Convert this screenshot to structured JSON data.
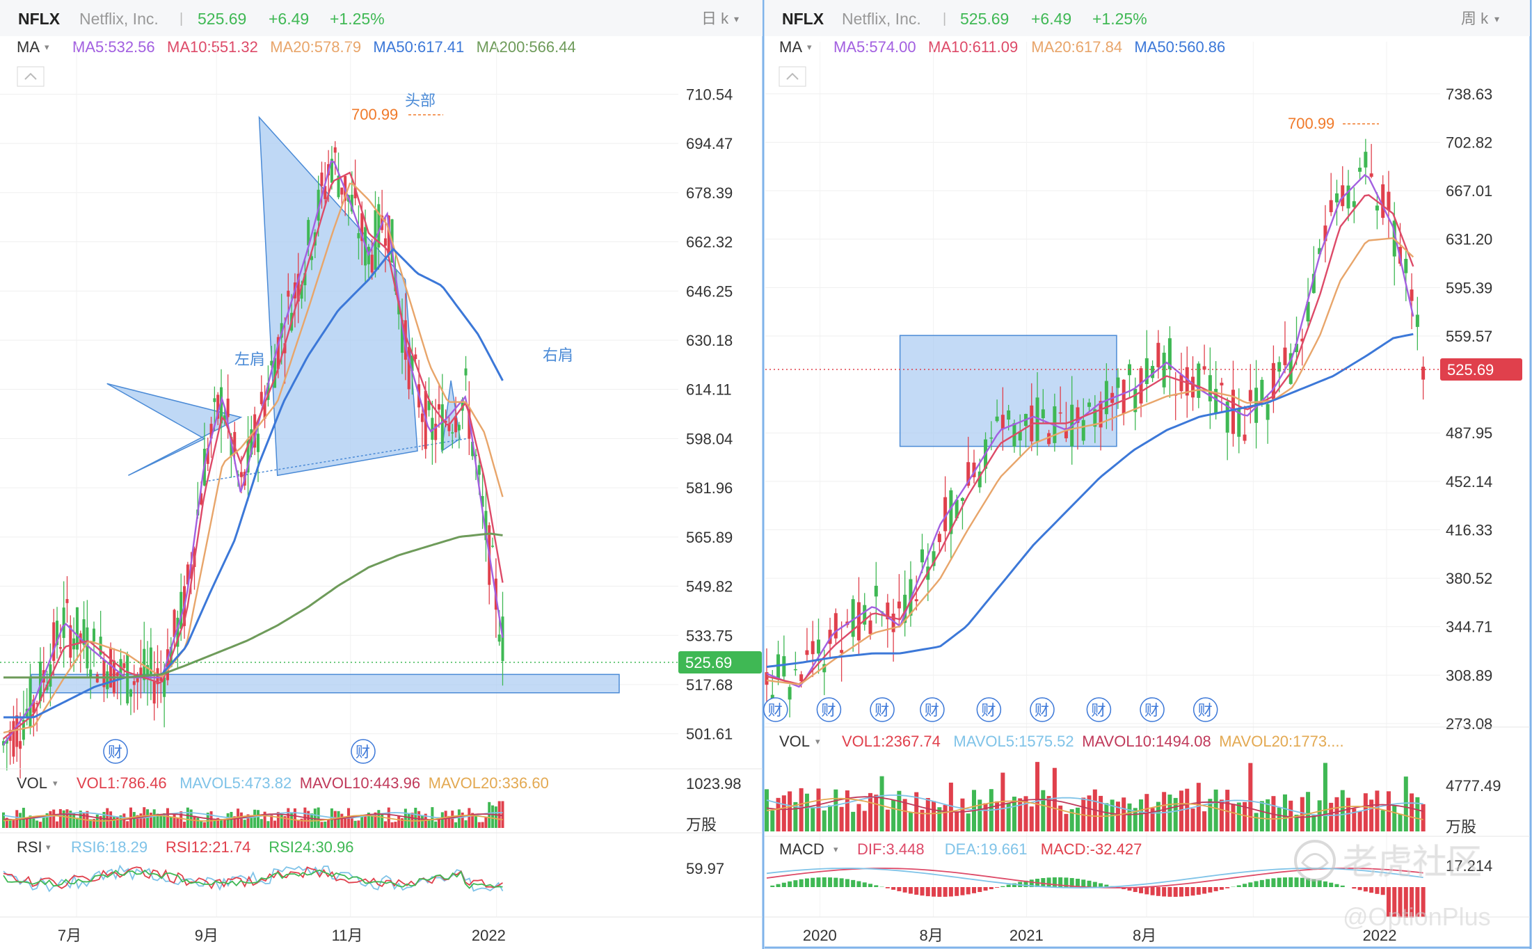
{
  "colors": {
    "up": "#3fb854",
    "down": "#e0404c",
    "ma5": "#a25fe0",
    "ma10": "#dd4a68",
    "ma20": "#e8a56a",
    "ma50": "#3c78d8",
    "ma200": "#6e9b5a",
    "accent": "#f07a2a",
    "blue_fill": "#a9cbf2",
    "text": "#333333",
    "muted": "#999999",
    "price_box": "#3fb854",
    "price_box_right": "#e0404c",
    "vol_ma5": "#7fc3e8",
    "vol_ma10": "#c0395a",
    "vol_ma20": "#e3a952",
    "rsi6": "#7fc3e8",
    "rsi12": "#e0404c",
    "rsi24": "#3fb854"
  },
  "left_panel": {
    "header": {
      "symbol": "NFLX",
      "company": "Netflix, Inc.",
      "separator": "|",
      "price": "525.69",
      "change": "+6.49",
      "change_pct": "+1.25%",
      "period": "日 k",
      "period_arrow": "▾"
    },
    "ma_row": {
      "label": "MA",
      "arrow": "▾",
      "collapse_icon": "chevron-up-icon",
      "items": [
        {
          "text": "MA5:532.56",
          "color": "#a25fe0"
        },
        {
          "text": "MA10:551.32",
          "color": "#dd4a68"
        },
        {
          "text": "MA20:578.79",
          "color": "#e8a56a"
        },
        {
          "text": "MA50:617.41",
          "color": "#3c78d8"
        },
        {
          "text": "MA200:566.44",
          "color": "#6e9b5a"
        }
      ]
    },
    "y_ticks": [
      "710.54",
      "694.47",
      "678.39",
      "662.32",
      "646.25",
      "630.18",
      "614.11",
      "598.04",
      "581.96",
      "565.89",
      "549.82",
      "533.75",
      "517.68",
      "501.61"
    ],
    "current_price_label": "525.69",
    "annotations": {
      "head": "头部",
      "left_shoulder": "左肩",
      "right_shoulder": "右肩",
      "high": "700.99"
    },
    "earnings_label": "财",
    "vol_row": {
      "label": "VOL",
      "arrow": "▾",
      "items": [
        {
          "text": "VOL1:786.46",
          "color": "#e0404c"
        },
        {
          "text": "MAVOL5:473.82",
          "color": "#7fc3e8"
        },
        {
          "text": "MAVOL10:443.96",
          "color": "#c0395a"
        },
        {
          "text": "MAVOL20:336.60",
          "color": "#e3a952"
        }
      ],
      "axis_top": "1023.98",
      "unit": "万股"
    },
    "rsi_row": {
      "label": "RSI",
      "arrow": "▾",
      "items": [
        {
          "text": "RSI6:18.29",
          "color": "#7fc3e8"
        },
        {
          "text": "RSI12:21.74",
          "color": "#e0404c"
        },
        {
          "text": "RSI24:30.96",
          "color": "#3fb854"
        }
      ],
      "axis_top": "59.97"
    },
    "x_ticks": [
      "7月",
      "9月",
      "11月",
      "2022"
    ]
  },
  "right_panel": {
    "header": {
      "symbol": "NFLX",
      "company": "Netflix, Inc.",
      "separator": "|",
      "price": "525.69",
      "change": "+6.49",
      "change_pct": "+1.25%",
      "period": "周 k",
      "period_arrow": "▾"
    },
    "ma_row": {
      "label": "MA",
      "arrow": "▾",
      "collapse_icon": "chevron-up-icon",
      "items": [
        {
          "text": "MA5:574.00",
          "color": "#a25fe0"
        },
        {
          "text": "MA10:611.09",
          "color": "#dd4a68"
        },
        {
          "text": "MA20:617.84",
          "color": "#e8a56a"
        },
        {
          "text": "MA50:560.86",
          "color": "#3c78d8"
        }
      ]
    },
    "y_ticks": [
      "738.63",
      "702.82",
      "667.01",
      "631.20",
      "595.39",
      "559.57",
      "487.95",
      "452.14",
      "416.33",
      "380.52",
      "344.71",
      "308.89",
      "273.08"
    ],
    "current_price_label": "525.69",
    "annotations": {
      "high": "700.99"
    },
    "earnings_label": "财",
    "vol_row": {
      "label": "VOL",
      "arrow": "▾",
      "items": [
        {
          "text": "VOL1:2367.74",
          "color": "#e0404c"
        },
        {
          "text": "MAVOL5:1575.52",
          "color": "#7fc3e8"
        },
        {
          "text": "MAVOL10:1494.08",
          "color": "#c0395a"
        },
        {
          "text": "MAVOL20:1773....",
          "color": "#e3a952"
        }
      ],
      "axis_top": "4777.49",
      "unit": "万股"
    },
    "macd_row": {
      "label": "MACD",
      "arrow": "▾",
      "items": [
        {
          "text": "DIF:3.448",
          "color": "#dd4a68"
        },
        {
          "text": "DEA:19.661",
          "color": "#7fc3e8"
        },
        {
          "text": "MACD:-32.427",
          "color": "#e0404c"
        }
      ],
      "axis_top": "17.214"
    },
    "x_ticks": [
      "2020",
      "8月",
      "2021",
      "8月",
      "2022"
    ]
  },
  "watermark": {
    "brand": "老虎社区",
    "handle": "@OptionPlus",
    "icon": "tiger-logo-icon"
  },
  "chart_data": [
    {
      "type": "candlestick",
      "title": "",
      "period": "daily",
      "ylim": [
        493.58,
        718.58
      ],
      "y_ticks": [
        710.54,
        694.47,
        678.39,
        662.32,
        646.25,
        630.18,
        614.11,
        598.04,
        581.96,
        565.89,
        549.82,
        533.75,
        517.68,
        501.61
      ],
      "x_ticks": [
        "7月",
        "9月",
        "11月",
        "2022"
      ],
      "last_close": 525.69,
      "high_marker": 700.99,
      "pattern": "head-and-shoulders",
      "pattern_labels": {
        "left_shoulder": "左肩",
        "head": "头部",
        "right_shoulder": "右肩"
      },
      "pattern_points": [
        {
          "label": "左肩",
          "x": 0.17,
          "price": 616
        },
        {
          "label": "",
          "x": 0.205,
          "price": 586
        },
        {
          "label": "头部",
          "x": 0.42,
          "price": 703
        },
        {
          "label": "",
          "x": 0.37,
          "price": 584
        },
        {
          "label": "右肩",
          "x": 0.735,
          "price": 617
        }
      ],
      "support_zone": [
        515,
        521
      ],
      "moving_averages": {
        "MA5": [
          [
            0,
            498
          ],
          [
            0.05,
            512
          ],
          [
            0.1,
            538
          ],
          [
            0.14,
            530
          ],
          [
            0.2,
            520
          ],
          [
            0.26,
            520
          ],
          [
            0.3,
            545
          ],
          [
            0.33,
            590
          ],
          [
            0.36,
            612
          ],
          [
            0.39,
            580
          ],
          [
            0.45,
            628
          ],
          [
            0.5,
            660
          ],
          [
            0.54,
            690
          ],
          [
            0.57,
            675
          ],
          [
            0.6,
            658
          ],
          [
            0.63,
            672
          ],
          [
            0.66,
            628
          ],
          [
            0.7,
            600
          ],
          [
            0.73,
            605
          ],
          [
            0.76,
            612
          ],
          [
            0.79,
            570
          ],
          [
            0.82,
            533
          ]
        ],
        "MA10": [
          [
            0,
            500
          ],
          [
            0.05,
            508
          ],
          [
            0.1,
            530
          ],
          [
            0.14,
            532
          ],
          [
            0.2,
            522
          ],
          [
            0.26,
            518
          ],
          [
            0.3,
            540
          ],
          [
            0.33,
            580
          ],
          [
            0.36,
            606
          ],
          [
            0.39,
            590
          ],
          [
            0.45,
            620
          ],
          [
            0.5,
            655
          ],
          [
            0.54,
            682
          ],
          [
            0.57,
            685
          ],
          [
            0.6,
            665
          ],
          [
            0.63,
            660
          ],
          [
            0.66,
            632
          ],
          [
            0.7,
            610
          ],
          [
            0.73,
            602
          ],
          [
            0.76,
            610
          ],
          [
            0.79,
            585
          ],
          [
            0.82,
            551
          ]
        ],
        "MA20": [
          [
            0,
            502
          ],
          [
            0.05,
            504
          ],
          [
            0.1,
            520
          ],
          [
            0.14,
            532
          ],
          [
            0.2,
            528
          ],
          [
            0.26,
            520
          ],
          [
            0.3,
            530
          ],
          [
            0.33,
            560
          ],
          [
            0.36,
            590
          ],
          [
            0.39,
            595
          ],
          [
            0.45,
            610
          ],
          [
            0.5,
            640
          ],
          [
            0.54,
            665
          ],
          [
            0.57,
            682
          ],
          [
            0.6,
            676
          ],
          [
            0.63,
            668
          ],
          [
            0.66,
            648
          ],
          [
            0.7,
            622
          ],
          [
            0.73,
            610
          ],
          [
            0.76,
            610
          ],
          [
            0.79,
            600
          ],
          [
            0.82,
            579
          ]
        ],
        "MA50": [
          [
            0,
            507
          ],
          [
            0.05,
            507
          ],
          [
            0.1,
            512
          ],
          [
            0.15,
            517
          ],
          [
            0.2,
            520
          ],
          [
            0.26,
            521
          ],
          [
            0.3,
            530
          ],
          [
            0.34,
            548
          ],
          [
            0.38,
            565
          ],
          [
            0.42,
            590
          ],
          [
            0.46,
            610
          ],
          [
            0.5,
            625
          ],
          [
            0.55,
            640
          ],
          [
            0.6,
            650
          ],
          [
            0.64,
            660
          ],
          [
            0.68,
            652
          ],
          [
            0.72,
            648
          ],
          [
            0.75,
            640
          ],
          [
            0.78,
            632
          ],
          [
            0.82,
            617
          ]
        ],
        "MA200": [
          [
            0,
            520
          ],
          [
            0.05,
            520
          ],
          [
            0.1,
            520
          ],
          [
            0.15,
            520
          ],
          [
            0.2,
            520
          ],
          [
            0.26,
            521
          ],
          [
            0.3,
            524
          ],
          [
            0.35,
            528
          ],
          [
            0.4,
            532
          ],
          [
            0.45,
            537
          ],
          [
            0.5,
            543
          ],
          [
            0.55,
            550
          ],
          [
            0.6,
            556
          ],
          [
            0.65,
            560
          ],
          [
            0.7,
            563
          ],
          [
            0.75,
            566
          ],
          [
            0.8,
            567
          ],
          [
            0.82,
            566.44
          ]
        ]
      },
      "indicators": {
        "VOL": {
          "VOL1": 786.46,
          "MAVOL5": 473.82,
          "MAVOL10": 443.96,
          "MAVOL20": 336.6,
          "axis_top": 1023.98,
          "unit": "万股"
        },
        "RSI": {
          "RSI6": 18.29,
          "RSI12": 21.74,
          "RSI24": 30.96,
          "axis_top": 59.97
        }
      }
    },
    {
      "type": "candlestick",
      "title": "",
      "period": "weekly",
      "ylim": [
        273.08,
        756.54
      ],
      "y_ticks": [
        738.63,
        702.82,
        667.01,
        631.2,
        595.39,
        559.57,
        487.95,
        452.14,
        416.33,
        380.52,
        344.71,
        308.89,
        273.08
      ],
      "x_ticks": [
        "2020",
        "8月",
        "2021",
        "8月",
        "2022"
      ],
      "last_close": 525.69,
      "high_marker": 700.99,
      "consolidation_box": [
        478,
        560
      ],
      "moving_averages": {
        "MA5": [
          [
            0,
            310
          ],
          [
            0.05,
            300
          ],
          [
            0.1,
            340
          ],
          [
            0.16,
            360
          ],
          [
            0.2,
            345
          ],
          [
            0.26,
            420
          ],
          [
            0.3,
            450
          ],
          [
            0.35,
            490
          ],
          [
            0.4,
            500
          ],
          [
            0.45,
            490
          ],
          [
            0.5,
            510
          ],
          [
            0.55,
            520
          ],
          [
            0.6,
            540
          ],
          [
            0.65,
            520
          ],
          [
            0.7,
            505
          ],
          [
            0.72,
            500
          ],
          [
            0.76,
            520
          ],
          [
            0.79,
            545
          ],
          [
            0.83,
            620
          ],
          [
            0.86,
            660
          ],
          [
            0.9,
            680
          ],
          [
            0.94,
            640
          ],
          [
            0.97,
            574
          ]
        ],
        "MA10": [
          [
            0,
            308
          ],
          [
            0.05,
            302
          ],
          [
            0.1,
            330
          ],
          [
            0.16,
            355
          ],
          [
            0.2,
            350
          ],
          [
            0.26,
            400
          ],
          [
            0.3,
            440
          ],
          [
            0.35,
            480
          ],
          [
            0.4,
            495
          ],
          [
            0.45,
            495
          ],
          [
            0.5,
            505
          ],
          [
            0.55,
            515
          ],
          [
            0.6,
            530
          ],
          [
            0.65,
            522
          ],
          [
            0.7,
            510
          ],
          [
            0.72,
            505
          ],
          [
            0.76,
            515
          ],
          [
            0.79,
            535
          ],
          [
            0.83,
            590
          ],
          [
            0.86,
            640
          ],
          [
            0.9,
            665
          ],
          [
            0.94,
            650
          ],
          [
            0.97,
            611
          ]
        ],
        "MA20": [
          [
            0,
            305
          ],
          [
            0.05,
            302
          ],
          [
            0.1,
            320
          ],
          [
            0.16,
            340
          ],
          [
            0.2,
            345
          ],
          [
            0.26,
            380
          ],
          [
            0.3,
            415
          ],
          [
            0.35,
            455
          ],
          [
            0.4,
            480
          ],
          [
            0.45,
            490
          ],
          [
            0.5,
            495
          ],
          [
            0.55,
            505
          ],
          [
            0.6,
            515
          ],
          [
            0.65,
            520
          ],
          [
            0.7,
            515
          ],
          [
            0.72,
            510
          ],
          [
            0.76,
            512
          ],
          [
            0.79,
            522
          ],
          [
            0.83,
            560
          ],
          [
            0.86,
            600
          ],
          [
            0.9,
            630
          ],
          [
            0.94,
            632
          ],
          [
            0.97,
            618
          ]
        ],
        "MA50": [
          [
            0,
            315
          ],
          [
            0.05,
            318
          ],
          [
            0.1,
            322
          ],
          [
            0.16,
            325
          ],
          [
            0.2,
            325
          ],
          [
            0.26,
            330
          ],
          [
            0.3,
            345
          ],
          [
            0.35,
            375
          ],
          [
            0.4,
            405
          ],
          [
            0.45,
            430
          ],
          [
            0.5,
            455
          ],
          [
            0.55,
            475
          ],
          [
            0.6,
            490
          ],
          [
            0.65,
            500
          ],
          [
            0.7,
            505
          ],
          [
            0.75,
            510
          ],
          [
            0.8,
            520
          ],
          [
            0.85,
            530
          ],
          [
            0.9,
            545
          ],
          [
            0.94,
            558
          ],
          [
            0.97,
            561
          ]
        ]
      },
      "indicators": {
        "VOL": {
          "VOL1": 2367.74,
          "MAVOL5": 1575.52,
          "MAVOL10": 1494.08,
          "axis_top": 4777.49,
          "unit": "万股"
        },
        "MACD": {
          "DIF": 3.448,
          "DEA": 19.661,
          "MACD": -32.427,
          "axis_top": 17.214
        }
      }
    }
  ]
}
